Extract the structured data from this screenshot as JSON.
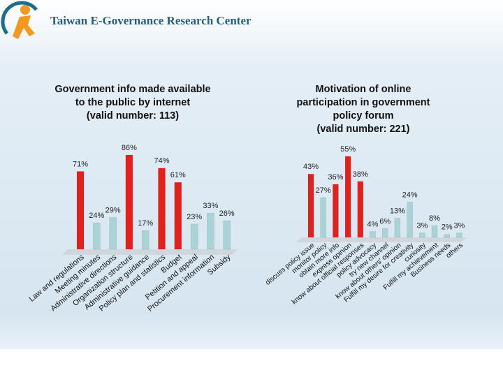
{
  "header": {
    "title": "Taiwan E-Governance Research Center"
  },
  "chart_data": [
    {
      "type": "bar",
      "title": [
        "Government info made available",
        "to the public by internet",
        "(valid number: 113)"
      ],
      "categories": [
        "Law and regulations",
        "Meeting minutes",
        "Administrative directions",
        "Organization structure",
        "Administrative guidance",
        "Policy plan and statistics",
        "Budget",
        "Petition and appeal",
        "Procurement information",
        "Subsidy"
      ],
      "values": [
        71,
        24,
        29,
        86,
        17,
        74,
        61,
        23,
        33,
        26
      ],
      "value_labels": [
        "71%",
        "24%",
        "29%",
        "86%",
        "17%",
        "74%",
        "61%",
        "23%",
        "33%",
        "26%"
      ],
      "colors": [
        "#e3201b",
        "#a9d3d6",
        "#a9d3d6",
        "#e3201b",
        "#a9d3d6",
        "#e3201b",
        "#e3201b",
        "#a9d3d6",
        "#a9d3d6",
        "#a9d3d6"
      ]
    },
    {
      "type": "bar",
      "title": [
        "Motivation of online",
        "participation in government",
        "policy forum",
        "(valid number: 221)"
      ],
      "categories": [
        "discuss policy issue",
        "monitor policy",
        "obtain more info",
        "express opinion",
        "know about official responses",
        "policy advocacy",
        "try new channel",
        "know about others' opinion",
        "Fulfill my desire for creativity",
        "curiosity",
        "Fulfill my achievement",
        "Business needs",
        "others"
      ],
      "values": [
        43,
        27,
        36,
        55,
        38,
        4,
        6,
        13,
        24,
        3,
        8,
        2,
        3
      ],
      "value_labels": [
        "43%",
        "27%",
        "36%",
        "55%",
        "38%",
        "4%",
        "6%",
        "13%",
        "24%",
        "3%",
        "8%",
        "2%",
        "3%"
      ],
      "colors": [
        "#e3201b",
        "#a9d3d6",
        "#e3201b",
        "#e3201b",
        "#e3201b",
        "#a9d3d6",
        "#a9d3d6",
        "#a9d3d6",
        "#a9d3d6",
        "#a9d3d6",
        "#a9d3d6",
        "#a9d3d6",
        "#a9d3d6"
      ]
    }
  ]
}
